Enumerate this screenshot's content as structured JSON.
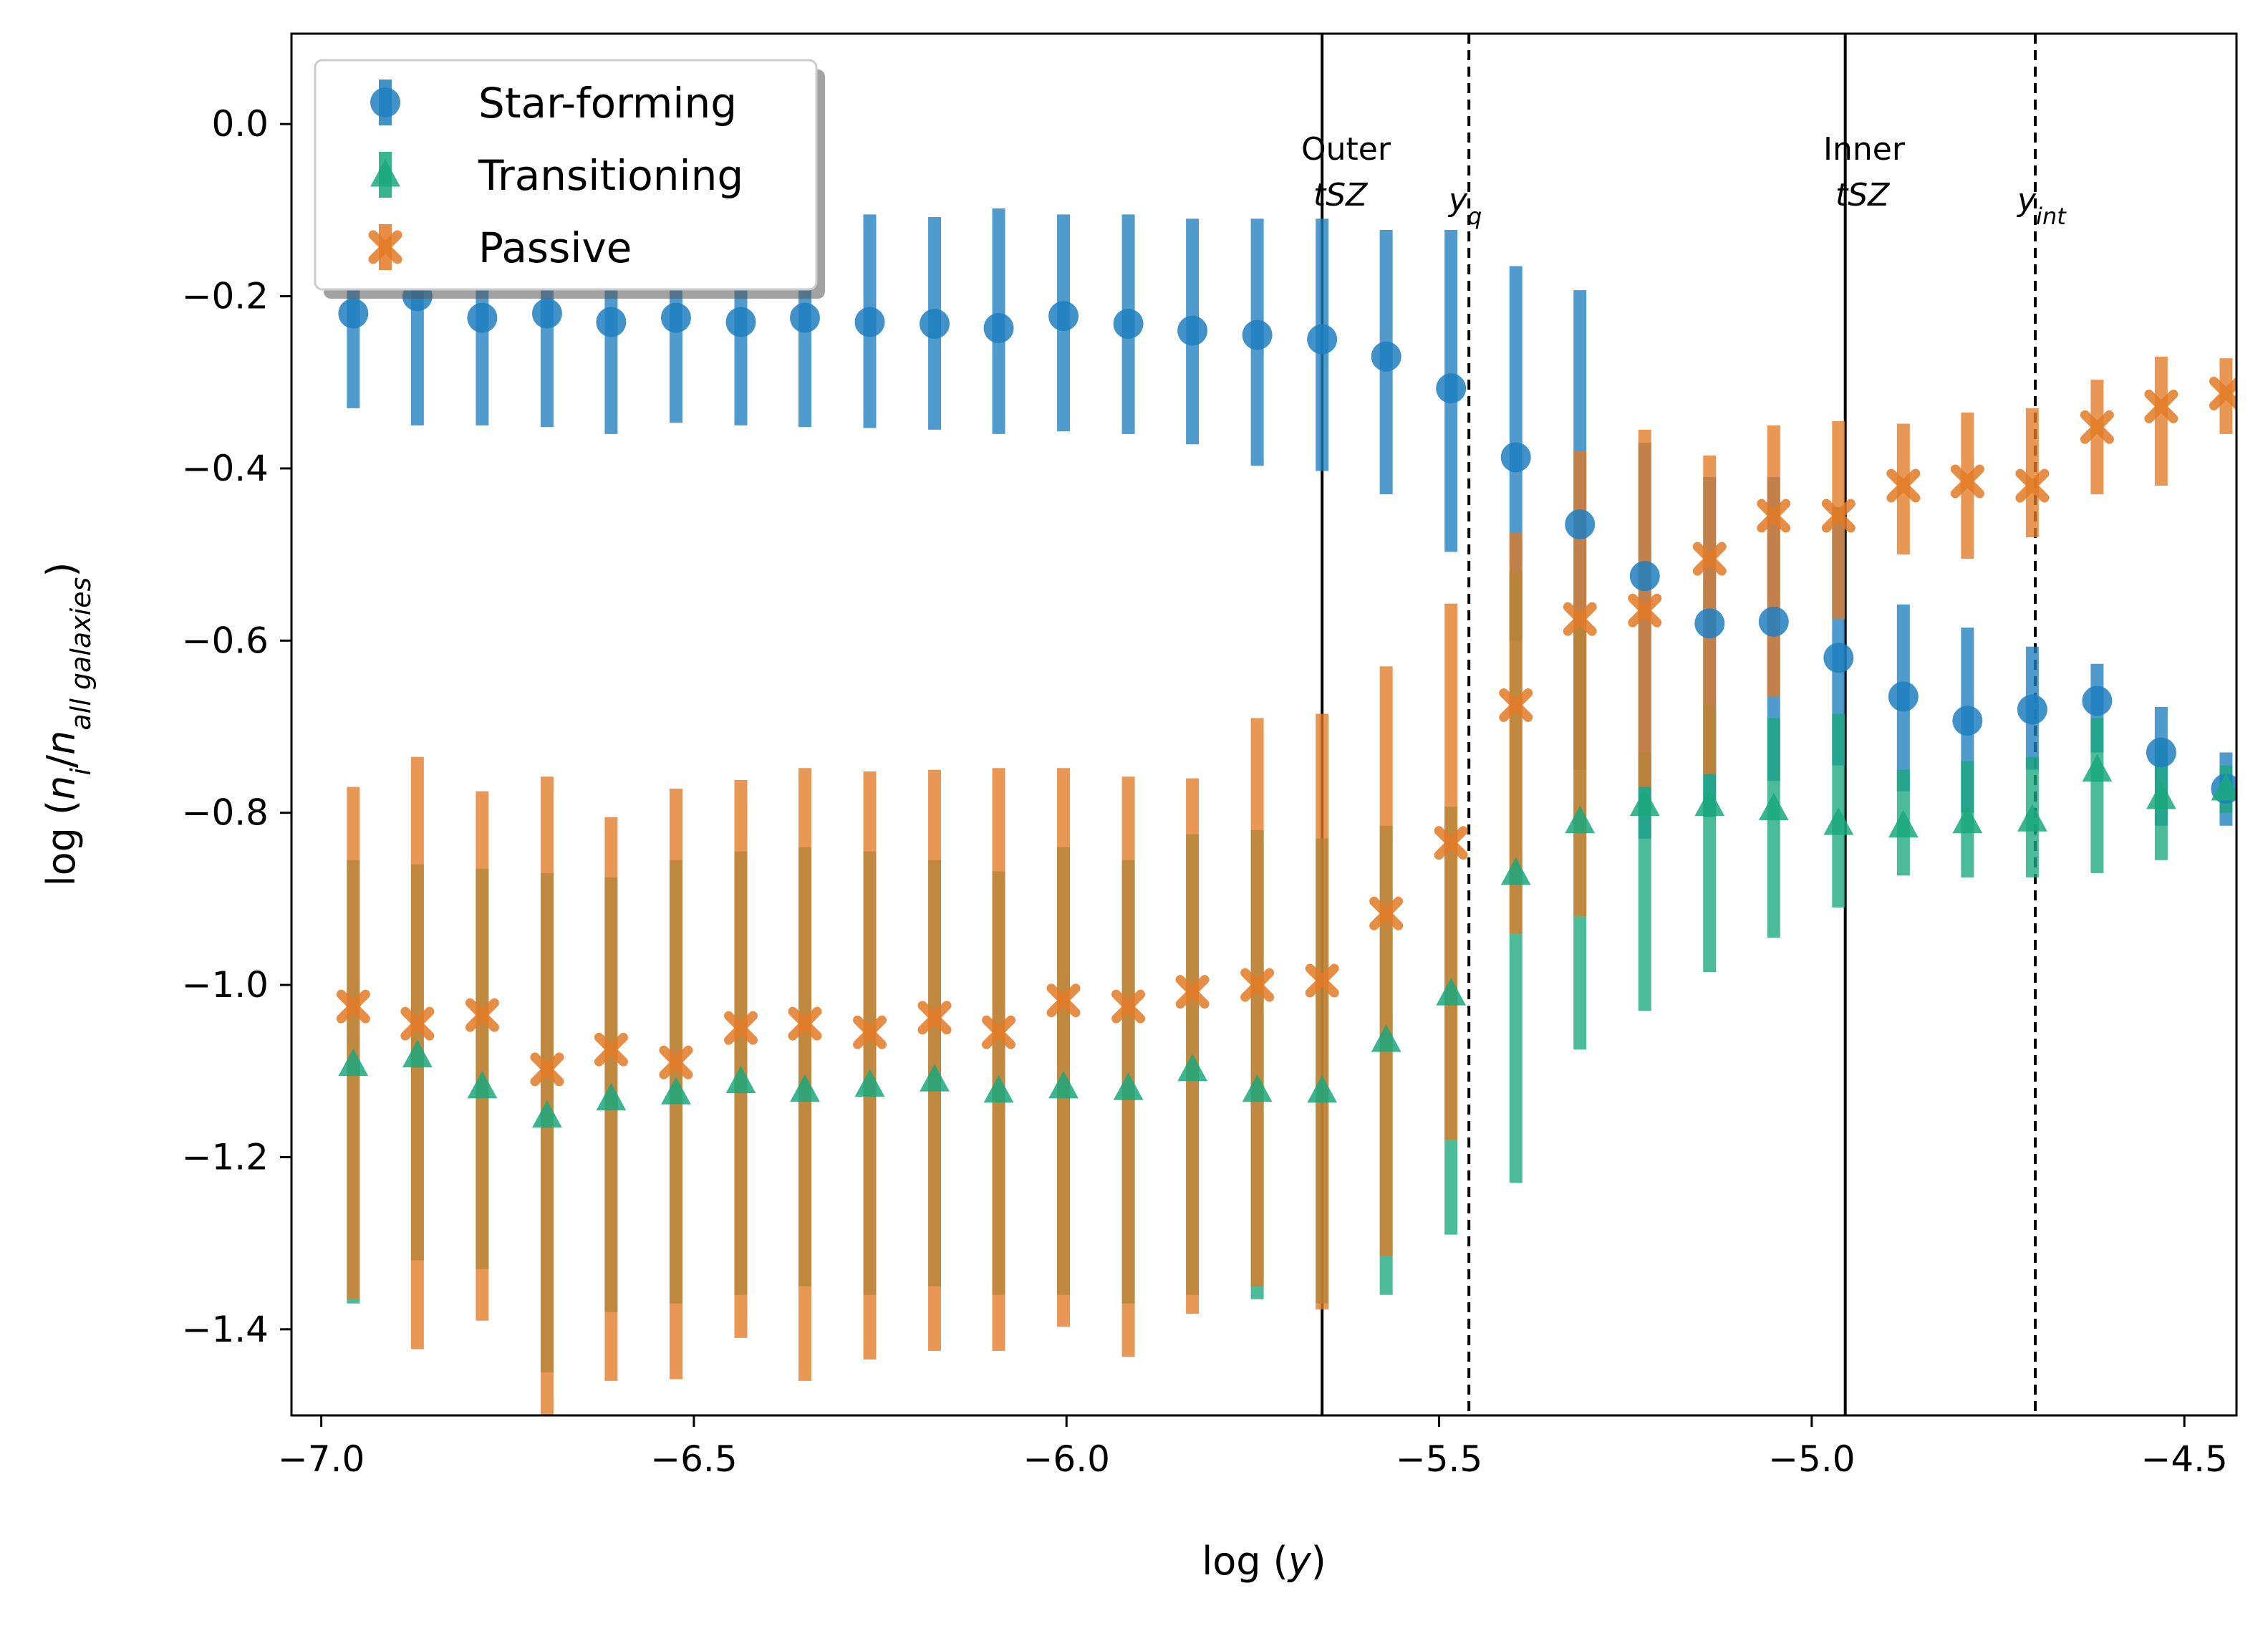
{
  "chart_data": {
    "type": "scatter",
    "xlabel": "log (y)",
    "ylabel": "log (n_i/n_all galaxies)",
    "xlim": [
      -7.04,
      -4.43
    ],
    "ylim": [
      -1.5,
      0.105
    ],
    "x_ticks": [
      -7.0,
      -6.5,
      -6.0,
      -5.5,
      -5.0,
      -4.5
    ],
    "x_tick_labels": [
      "−7.0",
      "−6.5",
      "−6.0",
      "−5.5",
      "−5.0",
      "−4.5"
    ],
    "y_ticks": [
      0.0,
      -0.2,
      -0.4,
      -0.6,
      -0.8,
      -1.0,
      -1.2,
      -1.4
    ],
    "y_tick_labels": [
      "0.0",
      "−0.2",
      "−0.4",
      "−0.6",
      "−0.8",
      "−1.0",
      "−1.2",
      "−1.4"
    ],
    "legend_position": "top-left",
    "x": [
      -6.957,
      -6.871,
      -6.784,
      -6.697,
      -6.611,
      -6.524,
      -6.437,
      -6.351,
      -6.264,
      -6.177,
      -6.091,
      -6.004,
      -5.917,
      -5.831,
      -5.744,
      -5.657,
      -5.571,
      -5.484,
      -5.397,
      -5.311,
      -5.224,
      -5.137,
      -5.051,
      -4.964,
      -4.877,
      -4.791,
      -4.704,
      -4.617,
      -4.531,
      -4.444
    ],
    "series": [
      {
        "name": "Star-forming",
        "marker": "circle",
        "color": "#1f7fbf",
        "values": [
          -0.22,
          -0.2,
          -0.225,
          -0.22,
          -0.23,
          -0.225,
          -0.23,
          -0.225,
          -0.23,
          -0.232,
          -0.237,
          -0.223,
          -0.232,
          -0.24,
          -0.245,
          -0.25,
          -0.27,
          -0.307,
          -0.387,
          -0.465,
          -0.525,
          -0.58,
          -0.578,
          -0.62,
          -0.665,
          -0.693,
          -0.68,
          -0.67,
          -0.73,
          -0.772
        ],
        "err_low": [
          -0.33,
          -0.35,
          -0.35,
          -0.352,
          -0.36,
          -0.347,
          -0.35,
          -0.352,
          -0.353,
          -0.355,
          -0.36,
          -0.357,
          -0.36,
          -0.372,
          -0.397,
          -0.403,
          -0.43,
          -0.497,
          -0.6,
          -0.75,
          -0.83,
          -0.805,
          -0.763,
          -0.745,
          -0.775,
          -0.8,
          -0.75,
          -0.73,
          -0.815,
          -0.815
        ],
        "err_high": [
          -0.11,
          -0.08,
          -0.1,
          -0.09,
          -0.1,
          -0.1,
          -0.11,
          -0.1,
          -0.105,
          -0.108,
          -0.098,
          -0.105,
          -0.105,
          -0.11,
          -0.11,
          -0.11,
          -0.123,
          -0.123,
          -0.165,
          -0.193,
          -0.37,
          -0.41,
          -0.41,
          -0.445,
          -0.558,
          -0.585,
          -0.607,
          -0.627,
          -0.677,
          -0.73
        ]
      },
      {
        "name": "Transitioning",
        "marker": "triangle",
        "color": "#1aa87d",
        "values": [
          -1.092,
          -1.082,
          -1.118,
          -1.152,
          -1.132,
          -1.125,
          -1.112,
          -1.122,
          -1.116,
          -1.11,
          -1.123,
          -1.118,
          -1.12,
          -1.098,
          -1.122,
          -1.123,
          -1.064,
          -1.01,
          -0.87,
          -0.81,
          -0.79,
          -0.79,
          -0.795,
          -0.812,
          -0.815,
          -0.81,
          -0.808,
          -0.75,
          -0.782,
          -0.772
        ],
        "err_low": [
          -1.37,
          -1.32,
          -1.33,
          -1.45,
          -1.38,
          -1.37,
          -1.36,
          -1.35,
          -1.36,
          -1.35,
          -1.36,
          -1.36,
          -1.37,
          -1.36,
          -1.365,
          -1.37,
          -1.36,
          -1.29,
          -1.23,
          -1.075,
          -1.03,
          -0.985,
          -0.945,
          -0.91,
          -0.873,
          -0.875,
          -0.875,
          -0.87,
          -0.855,
          -0.8
        ],
        "err_high": [
          -0.855,
          -0.86,
          -0.865,
          -0.87,
          -0.875,
          -0.855,
          -0.845,
          -0.84,
          -0.845,
          -0.855,
          -0.868,
          -0.84,
          -0.855,
          -0.825,
          -0.82,
          -0.83,
          -0.815,
          -0.793,
          -0.52,
          -0.57,
          -0.73,
          -0.675,
          -0.69,
          -0.685,
          -0.75,
          -0.74,
          -0.735,
          -0.69,
          -0.722,
          -0.745
        ]
      },
      {
        "name": "Passive",
        "marker": "x",
        "color": "#e37a26",
        "values": [
          -1.025,
          -1.045,
          -1.035,
          -1.098,
          -1.075,
          -1.09,
          -1.05,
          -1.045,
          -1.055,
          -1.038,
          -1.055,
          -1.018,
          -1.025,
          -1.008,
          -1.0,
          -0.995,
          -0.917,
          -0.835,
          -0.675,
          -0.575,
          -0.565,
          -0.505,
          -0.455,
          -0.455,
          -0.42,
          -0.415,
          -0.42,
          -0.352,
          -0.328,
          -0.313
        ],
        "err_low": [
          -1.365,
          -1.423,
          -1.39,
          -1.5,
          -1.46,
          -1.458,
          -1.41,
          -1.46,
          -1.435,
          -1.425,
          -1.425,
          -1.397,
          -1.432,
          -1.382,
          -1.35,
          -1.377,
          -1.315,
          -1.18,
          -0.94,
          -0.92,
          -0.77,
          -0.755,
          -0.665,
          -0.575,
          -0.5,
          -0.505,
          -0.48,
          -0.43,
          -0.42,
          -0.36
        ],
        "err_high": [
          -0.77,
          -0.735,
          -0.775,
          -0.758,
          -0.805,
          -0.772,
          -0.762,
          -0.748,
          -0.752,
          -0.75,
          -0.748,
          -0.748,
          -0.758,
          -0.76,
          -0.69,
          -0.685,
          -0.63,
          -0.557,
          -0.475,
          -0.38,
          -0.355,
          -0.385,
          -0.35,
          -0.345,
          -0.348,
          -0.335,
          -0.33,
          -0.297,
          -0.27,
          -0.272
        ]
      }
    ],
    "vlines": [
      {
        "x": -5.657,
        "style": "solid",
        "label_top": "Outer",
        "label_bottom": "tSZ"
      },
      {
        "x": -5.46,
        "style": "dashed",
        "label_top": "",
        "label_bottom": "y_q"
      },
      {
        "x": -4.955,
        "style": "solid",
        "label_top": "Inner",
        "label_bottom": "tSZ"
      },
      {
        "x": -4.7,
        "style": "dashed",
        "label_top": "",
        "label_bottom": "y_int"
      }
    ]
  },
  "labels": {
    "xlabel_main": "log (",
    "xlabel_var": "y",
    "xlabel_end": ")",
    "ylabel_main": "log (",
    "ylabel_n": "n",
    "ylabel_i": "i",
    "ylabel_slash": "/",
    "ylabel_n2": "n",
    "ylabel_sub": "all galaxies",
    "ylabel_end": ")",
    "yq_base": "y",
    "yq_sub": "q",
    "yint_base": "y",
    "yint_sub": "int"
  }
}
